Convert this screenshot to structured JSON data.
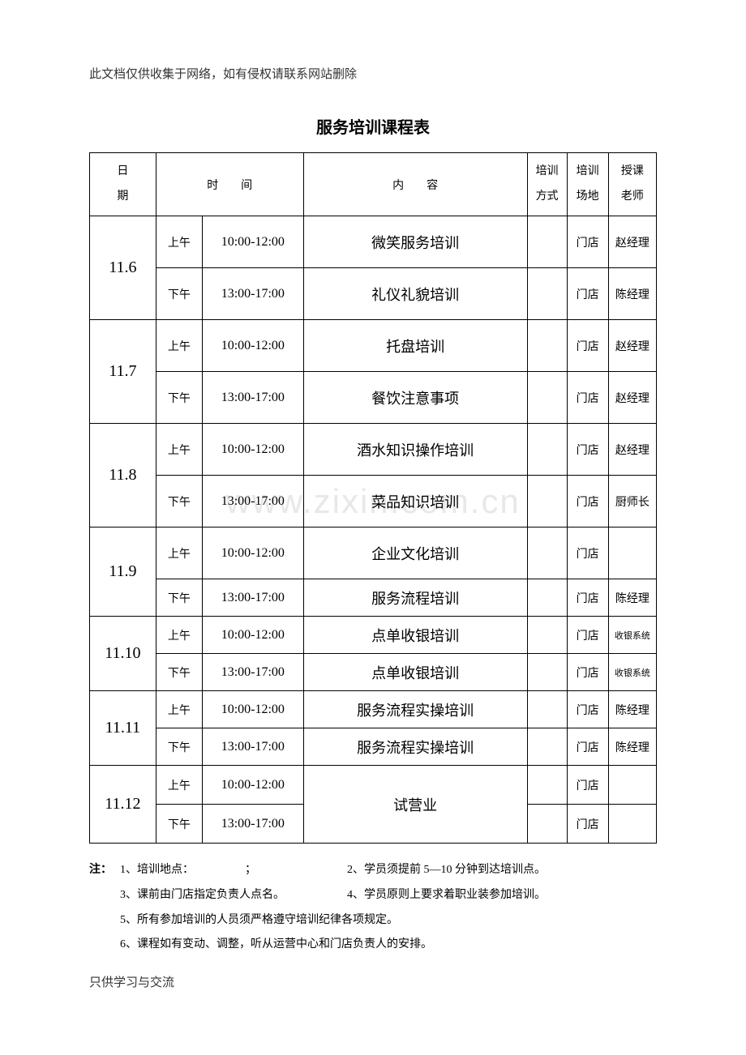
{
  "headerNote": "此文档仅供收集于网络，如有侵权请联系网站删除",
  "title": "服务培训课程表",
  "watermark": "www.zixin.com.cn",
  "footerNote": "只供学习与交流",
  "columns": {
    "date": "日\n期",
    "time": "时　　间",
    "content": "内　　容",
    "method": "培训方式",
    "location": "培训场地",
    "teacher": "授课老师"
  },
  "schedule": [
    {
      "date": "11.6",
      "rows": [
        {
          "period": "上午",
          "time": "10:00-12:00",
          "content": "微笑服务培训",
          "method": "",
          "location": "门店",
          "teacher": "赵经理"
        },
        {
          "period": "下午",
          "time": "13:00-17:00",
          "content": "礼仪礼貌培训",
          "method": "",
          "location": "门店",
          "teacher": "陈经理"
        }
      ]
    },
    {
      "date": "11.7",
      "rows": [
        {
          "period": "上午",
          "time": "10:00-12:00",
          "content": "托盘培训",
          "method": "",
          "location": "门店",
          "teacher": "赵经理"
        },
        {
          "period": "下午",
          "time": "13:00-17:00",
          "content": "餐饮注意事项",
          "method": "",
          "location": "门店",
          "teacher": "赵经理"
        }
      ]
    },
    {
      "date": "11.8",
      "rows": [
        {
          "period": "上午",
          "time": "10:00-12:00",
          "content": "酒水知识操作培训",
          "method": "",
          "location": "门店",
          "teacher": "赵经理"
        },
        {
          "period": "下午",
          "time": "13:00-17:00",
          "content": "菜品知识培训",
          "method": "",
          "location": "门店",
          "teacher": "厨师长"
        }
      ]
    },
    {
      "date": "11.9",
      "rows": [
        {
          "period": "上午",
          "time": "10:00-12:00",
          "content": "企业文化培训",
          "method": "",
          "location": "门店",
          "teacher": ""
        },
        {
          "period": "下午",
          "time": "13:00-17:00",
          "content": "服务流程培训",
          "method": "",
          "location": "门店",
          "teacher": "陈经理"
        }
      ]
    },
    {
      "date": "11.10",
      "rows": [
        {
          "period": "上午",
          "time": "10:00-12:00",
          "content": "点单收银培训",
          "method": "",
          "location": "门店",
          "teacher": "收银系统"
        },
        {
          "period": "下午",
          "time": "13:00-17:00",
          "content": "点单收银培训",
          "method": "",
          "location": "门店",
          "teacher": "收银系统"
        }
      ]
    },
    {
      "date": "11.11",
      "rows": [
        {
          "period": "上午",
          "time": "10:00-12:00",
          "content": "服务流程实操培训",
          "method": "",
          "location": "门店",
          "teacher": "陈经理"
        },
        {
          "period": "下午",
          "time": "13:00-17:00",
          "content": "服务流程实操培训",
          "method": "",
          "location": "门店",
          "teacher": "陈经理"
        }
      ]
    },
    {
      "date": "11.12",
      "mergedContent": "试营业",
      "rows": [
        {
          "period": "上午",
          "time": "10:00-12:00",
          "method": "",
          "location": "门店",
          "teacher": ""
        },
        {
          "period": "下午",
          "time": "13:00-17:00",
          "method": "",
          "location": "门店",
          "teacher": ""
        }
      ]
    }
  ],
  "notes": {
    "label": "注：",
    "items": [
      "1、培训地点：　　　　　；",
      "2、学员须提前 5—10 分钟到达培训点。",
      "3、课前由门店指定负责人点名。",
      "4、学员原则上要求着职业装参加培训。",
      "5、所有参加培训的人员须严格遵守培训纪律各项规定。",
      "6、课程如有变动、调整，听从运营中心和门店负责人的安排。"
    ]
  },
  "styling": {
    "pageWidth": 920,
    "pageHeight": 1302,
    "backgroundColor": "#ffffff",
    "textColor": "#000000",
    "borderColor": "#000000",
    "watermarkColor": "#e8e8e8",
    "titleFontSize": 20,
    "bodyFontSize": 15,
    "dateFontSize": 20,
    "contentFontSize": 18,
    "notesFontSize": 14
  }
}
